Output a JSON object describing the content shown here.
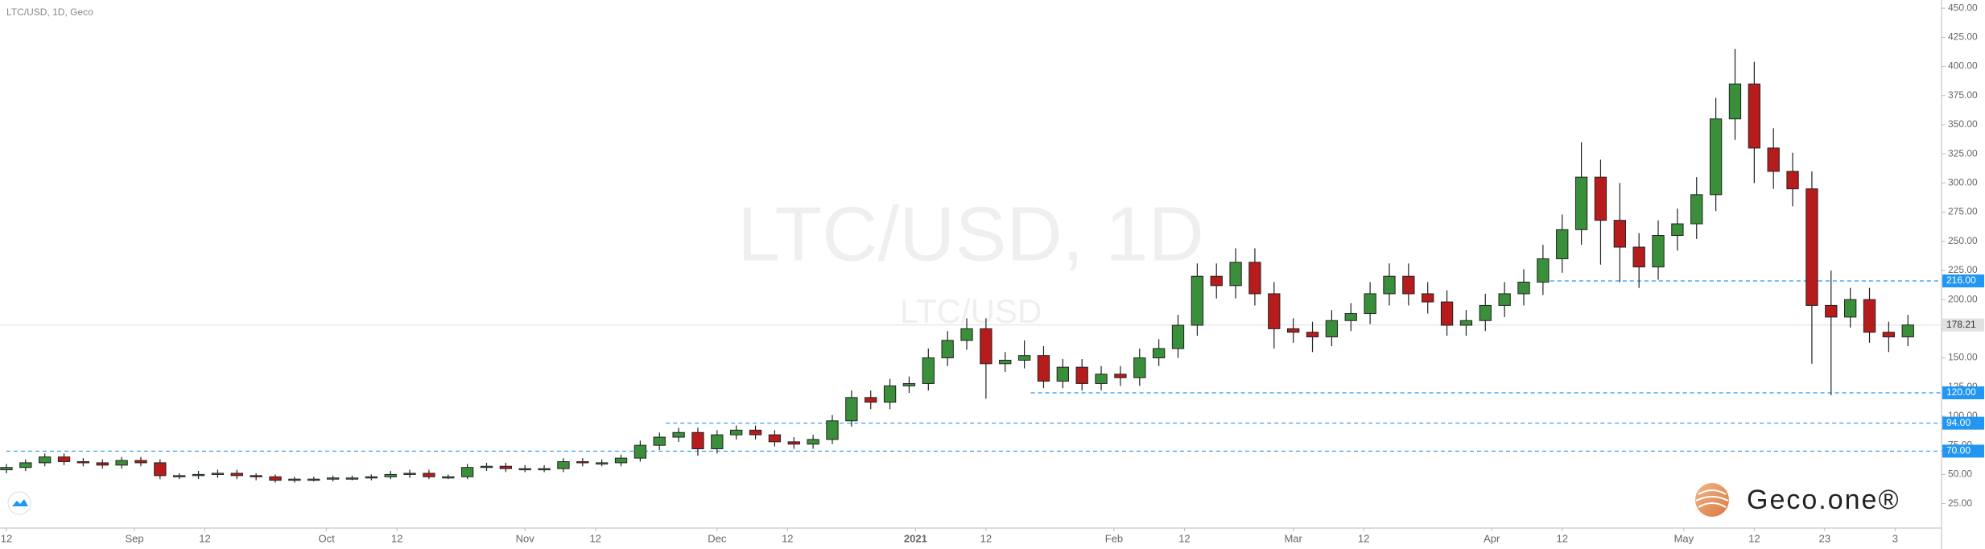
{
  "chart_data": {
    "type": "candlestick",
    "title": "LTC/USD, 1D, Geco",
    "watermark": "LTC/USD, 1D",
    "watermark_sub": "LTC/USD",
    "logo": "Geco.one®",
    "up_color": "#3a8f3a",
    "down_color": "#b71c1c",
    "x": [
      0,
      3,
      6,
      9,
      12,
      15,
      18,
      21,
      24,
      27,
      30,
      33,
      36,
      39,
      42,
      45,
      48,
      51,
      54,
      57,
      60,
      63,
      66,
      69,
      72,
      75,
      78,
      81,
      84,
      87,
      90,
      93,
      96,
      99,
      102,
      105,
      108,
      111,
      114,
      117,
      120,
      123,
      126,
      129,
      132,
      135,
      138,
      141,
      144,
      147,
      150,
      153,
      156,
      159,
      162,
      165,
      168,
      171,
      174,
      177,
      180,
      183,
      186,
      189,
      192,
      195,
      198,
      201,
      204,
      207,
      210,
      213,
      216,
      219,
      222,
      225,
      228,
      231,
      234,
      237,
      240,
      243,
      246,
      249,
      252,
      255,
      258,
      261,
      264,
      267,
      270,
      273,
      276,
      279,
      282,
      285,
      288,
      291,
      294,
      297
    ],
    "open": [
      54,
      56,
      60,
      65,
      61,
      60,
      58,
      62,
      60,
      49,
      49,
      50,
      51,
      49,
      48,
      45,
      46,
      46,
      47,
      47,
      48,
      50,
      51,
      48,
      48,
      56,
      57,
      55,
      55,
      55,
      61,
      60,
      60,
      64,
      75,
      82,
      86,
      72,
      84,
      88,
      84,
      78,
      76,
      80,
      96,
      116,
      112,
      126,
      128,
      150,
      165,
      175,
      145,
      148,
      152,
      130,
      142,
      128,
      136,
      133,
      150,
      158,
      178,
      220,
      212,
      232,
      205,
      175,
      172,
      168,
      182,
      188,
      205,
      220,
      205,
      198,
      178,
      182,
      195,
      205,
      215,
      235,
      260,
      305,
      268,
      245,
      228,
      255,
      265,
      290,
      355,
      385,
      330,
      310,
      295,
      195,
      185,
      200,
      172,
      168
    ],
    "high": [
      59,
      63,
      68,
      68,
      64,
      63,
      65,
      65,
      63,
      51,
      53,
      54,
      54,
      51,
      50,
      48,
      48,
      49,
      49,
      50,
      53,
      54,
      54,
      50,
      59,
      60,
      60,
      58,
      58,
      64,
      64,
      63,
      67,
      79,
      86,
      90,
      90,
      88,
      92,
      92,
      88,
      82,
      84,
      101,
      122,
      122,
      132,
      134,
      158,
      173,
      184,
      184,
      155,
      165,
      160,
      149,
      149,
      143,
      143,
      158,
      166,
      187,
      231,
      231,
      244,
      244,
      215,
      184,
      181,
      191,
      197,
      215,
      231,
      231,
      215,
      208,
      191,
      205,
      215,
      226,
      247,
      273,
      335,
      320,
      300,
      257,
      268,
      278,
      305,
      373,
      415,
      404,
      347,
      326,
      310,
      225,
      210,
      210,
      181,
      187
    ],
    "low": [
      51,
      53,
      57,
      58,
      57,
      55,
      55,
      57,
      46,
      46,
      46,
      47,
      46,
      45,
      43,
      43,
      44,
      44,
      45,
      45,
      46,
      47,
      46,
      46,
      46,
      53,
      52,
      52,
      52,
      52,
      57,
      57,
      57,
      61,
      71,
      78,
      66,
      68,
      80,
      80,
      74,
      72,
      72,
      76,
      91,
      106,
      106,
      120,
      122,
      143,
      157,
      115,
      138,
      141,
      124,
      124,
      122,
      122,
      126,
      126,
      143,
      150,
      169,
      201,
      201,
      195,
      158,
      163,
      155,
      160,
      173,
      179,
      195,
      195,
      188,
      169,
      169,
      173,
      185,
      195,
      204,
      223,
      247,
      230,
      215,
      210,
      217,
      242,
      252,
      276,
      337,
      300,
      295,
      280,
      145,
      118,
      176,
      163,
      155,
      160
    ],
    "close": [
      56,
      60,
      65,
      61,
      60,
      58,
      62,
      60,
      49,
      49,
      50,
      51,
      49,
      48,
      45,
      46,
      46,
      47,
      47,
      48,
      50,
      51,
      48,
      48,
      56,
      57,
      55,
      55,
      55,
      61,
      60,
      60,
      64,
      75,
      82,
      86,
      72,
      84,
      88,
      84,
      78,
      76,
      80,
      96,
      116,
      112,
      126,
      128,
      150,
      165,
      175,
      145,
      148,
      152,
      130,
      142,
      128,
      136,
      133,
      150,
      158,
      178,
      220,
      212,
      232,
      205,
      175,
      172,
      168,
      182,
      188,
      205,
      220,
      205,
      198,
      178,
      182,
      195,
      205,
      215,
      235,
      260,
      305,
      268,
      245,
      228,
      255,
      265,
      290,
      355,
      385,
      330,
      310,
      295,
      195,
      185,
      200,
      172,
      168,
      178.21
    ],
    "xlim": [
      -1,
      302
    ],
    "xticks": [
      {
        "value": 0,
        "label": "12"
      },
      {
        "value": 20,
        "label": "Sep"
      },
      {
        "value": 31,
        "label": "12"
      },
      {
        "value": 50,
        "label": "Oct"
      },
      {
        "value": 61,
        "label": "12"
      },
      {
        "value": 81,
        "label": "Nov"
      },
      {
        "value": 92,
        "label": "12"
      },
      {
        "value": 111,
        "label": "Dec"
      },
      {
        "value": 122,
        "label": "12"
      },
      {
        "value": 142,
        "label": "2021"
      },
      {
        "value": 153,
        "label": "12"
      },
      {
        "value": 173,
        "label": "Feb"
      },
      {
        "value": 184,
        "label": "12"
      },
      {
        "value": 201,
        "label": "Mar"
      },
      {
        "value": 212,
        "label": "12"
      },
      {
        "value": 232,
        "label": "Apr"
      },
      {
        "value": 243,
        "label": "12"
      },
      {
        "value": 262,
        "label": "May"
      },
      {
        "value": 273,
        "label": "12"
      },
      {
        "value": 284,
        "label": "23"
      },
      {
        "value": 295,
        "label": "3"
      }
    ],
    "ylim": [
      4,
      457
    ],
    "yticks": [
      {
        "value": 25,
        "label": "25.00"
      },
      {
        "value": 50,
        "label": "50.00"
      },
      {
        "value": 75,
        "label": "75.00"
      },
      {
        "value": 100,
        "label": "100.00"
      },
      {
        "value": 125,
        "label": "125.00"
      },
      {
        "value": 150,
        "label": "150.00"
      },
      {
        "value": 175,
        "label": "175.00"
      },
      {
        "value": 200,
        "label": "200.00"
      },
      {
        "value": 225,
        "label": "225.00"
      },
      {
        "value": 250,
        "label": "250.00"
      },
      {
        "value": 275,
        "label": "275.00"
      },
      {
        "value": 300,
        "label": "300.00"
      },
      {
        "value": 325,
        "label": "325.00"
      },
      {
        "value": 350,
        "label": "350.00"
      },
      {
        "value": 375,
        "label": "375.00"
      },
      {
        "value": 400,
        "label": "400.00"
      },
      {
        "value": 425,
        "label": "425.00"
      },
      {
        "value": 450,
        "label": "450.00"
      }
    ],
    "levels": [
      {
        "value": 216,
        "label": "216.00",
        "from": 240
      },
      {
        "value": 120,
        "label": "120.00",
        "from": 160
      },
      {
        "value": 94,
        "label": "94.00",
        "from": 103
      },
      {
        "value": 70,
        "label": "70.00",
        "from": 0
      }
    ],
    "level_color": "#2196f3",
    "last_price": {
      "value": 178.21,
      "label": "178.21"
    }
  }
}
